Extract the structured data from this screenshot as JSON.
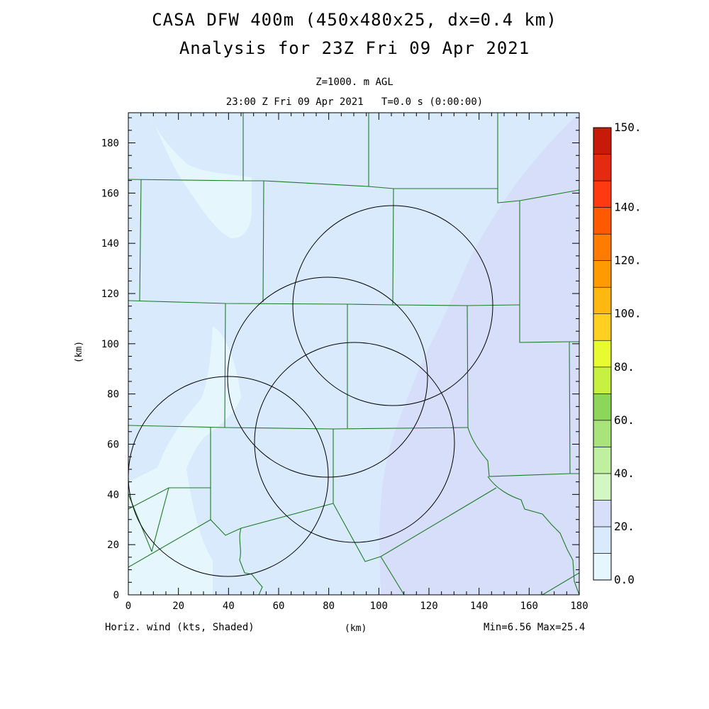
{
  "title_line1": "CASA DFW 400m (450x480x25, dx=0.4 km)",
  "title_line2": "Analysis for 23Z Fri 09 Apr 2021",
  "level_label": "Z=1000. m AGL",
  "time_label": "23:00 Z Fri 09 Apr 2021   T=0.0 s (0:00:00)",
  "y_axis_unit": "(km)",
  "x_axis_unit": "(km)",
  "field_label": "Horiz. wind (kts, Shaded)",
  "minmax_label": "Min=6.56 Max=25.4",
  "x_ticks": [
    "0",
    "20",
    "40",
    "60",
    "80",
    "100",
    "120",
    "140",
    "160",
    "180"
  ],
  "y_ticks": [
    "0",
    "20",
    "40",
    "60",
    "80",
    "100",
    "120",
    "140",
    "160",
    "180"
  ],
  "colorbar": {
    "labels": [
      "0.0",
      "20.",
      "40.",
      "60.",
      "80.",
      "100.",
      "120.",
      "140.",
      "150."
    ],
    "colors": [
      "#e6f6fd",
      "#d8eafb",
      "#d6def9",
      "#d2f7c2",
      "#bef0a0",
      "#a8e47a",
      "#8cd65a",
      "#c8f040",
      "#e8fa30",
      "#ffd020",
      "#ffb810",
      "#ff9a00",
      "#ff7c00",
      "#ff5a00",
      "#ff3a10",
      "#e42a10",
      "#c81a08"
    ]
  },
  "map_data": {
    "x_range_km": [
      0,
      180
    ],
    "y_range_km": [
      0,
      192
    ],
    "wind_zone_colors": {
      "low": "#e6f6fd",
      "mid": "#d8eafb",
      "high": "#d6def9"
    },
    "radar_rings_center_km": [
      [
        54,
        47.5
      ],
      [
        80,
        87
      ],
      [
        106,
        115
      ],
      [
        90,
        61
      ]
    ],
    "radar_ring_radius_km": 40
  }
}
